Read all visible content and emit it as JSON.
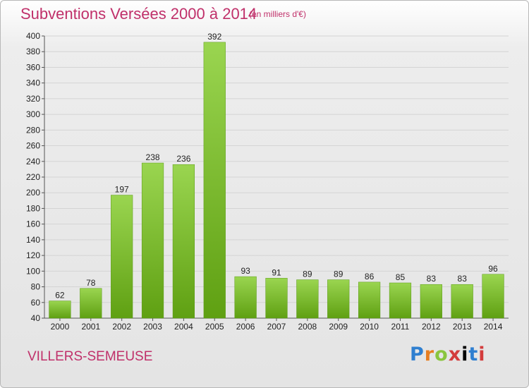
{
  "title": "Subventions Versées 2000 à 2014",
  "subtitle": "(en milliers d'€)",
  "city": "VILLERS-SEMEUSE",
  "logo": {
    "text": "Proxiti",
    "colors": [
      "#2f7fd0",
      "#e67e22",
      "#8ac53e",
      "#d33c3c"
    ]
  },
  "chart_data": {
    "type": "bar",
    "title": "Subventions Versées 2000 à 2014",
    "subtitle": "(en milliers d'€)",
    "categories": [
      "2000",
      "2001",
      "2002",
      "2003",
      "2004",
      "2005",
      "2006",
      "2007",
      "2008",
      "2009",
      "2010",
      "2011",
      "2012",
      "2013",
      "2014"
    ],
    "values": [
      62,
      78,
      197,
      238,
      236,
      392,
      93,
      91,
      89,
      89,
      86,
      85,
      83,
      83,
      96
    ],
    "ylim": [
      40,
      400
    ],
    "yticks": [
      40,
      60,
      80,
      100,
      120,
      140,
      160,
      180,
      200,
      220,
      240,
      260,
      280,
      300,
      320,
      340,
      360,
      380,
      400
    ],
    "grid": true,
    "legend": "none",
    "bar_color": "#7cc22a"
  }
}
